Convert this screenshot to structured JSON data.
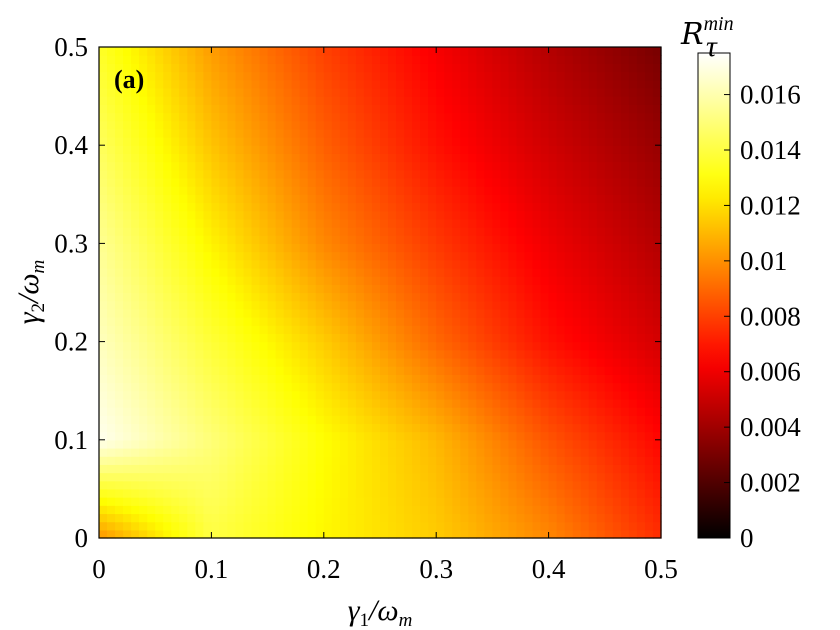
{
  "chart_data": {
    "type": "heatmap",
    "panel_label": "(a)",
    "xlabel": "γ1/ωm",
    "ylabel": "γ2/ωm",
    "xlim": [
      0,
      0.5
    ],
    "ylim": [
      0,
      0.5
    ],
    "x_ticks": [
      "0",
      "0.1",
      "0.2",
      "0.3",
      "0.4",
      "0.5"
    ],
    "y_ticks": [
      "0",
      "0.1",
      "0.2",
      "0.3",
      "0.4",
      "0.5"
    ],
    "x_tick_values": [
      0,
      0.1,
      0.2,
      0.3,
      0.4,
      0.5
    ],
    "y_tick_values": [
      0,
      0.1,
      0.2,
      0.3,
      0.4,
      0.5
    ],
    "colorbar": {
      "title": "R_τ^min",
      "title_main": "R",
      "title_sub": "τ",
      "title_sup": "min",
      "colormap": "hot",
      "range": [
        0,
        0.0175
      ],
      "ticks": [
        "0",
        "0.002",
        "0.004",
        "0.006",
        "0.008",
        "0.01",
        "0.012",
        "0.014",
        "0.016"
      ],
      "tick_values": [
        0,
        0.002,
        0.004,
        0.006,
        0.008,
        0.01,
        0.012,
        0.014,
        0.016
      ]
    },
    "approx_values": {
      "x": [
        0,
        0.1,
        0.2,
        0.3,
        0.4,
        0.5
      ],
      "y": [
        0,
        0.1,
        0.2,
        0.3,
        0.4,
        0.5
      ],
      "z": [
        [
          0.01,
          0.014,
          0.0126,
          0.0115,
          0.0098,
          0.0075
        ],
        [
          0.0172,
          0.015,
          0.0128,
          0.011,
          0.0085,
          0.0065
        ],
        [
          0.0163,
          0.0138,
          0.0115,
          0.009,
          0.0068,
          0.0053
        ],
        [
          0.0155,
          0.0125,
          0.0098,
          0.0078,
          0.006,
          0.0045
        ],
        [
          0.0145,
          0.0113,
          0.0088,
          0.0068,
          0.0052,
          0.0038
        ],
        [
          0.0135,
          0.0103,
          0.008,
          0.0062,
          0.0045,
          0.003
        ]
      ]
    }
  }
}
